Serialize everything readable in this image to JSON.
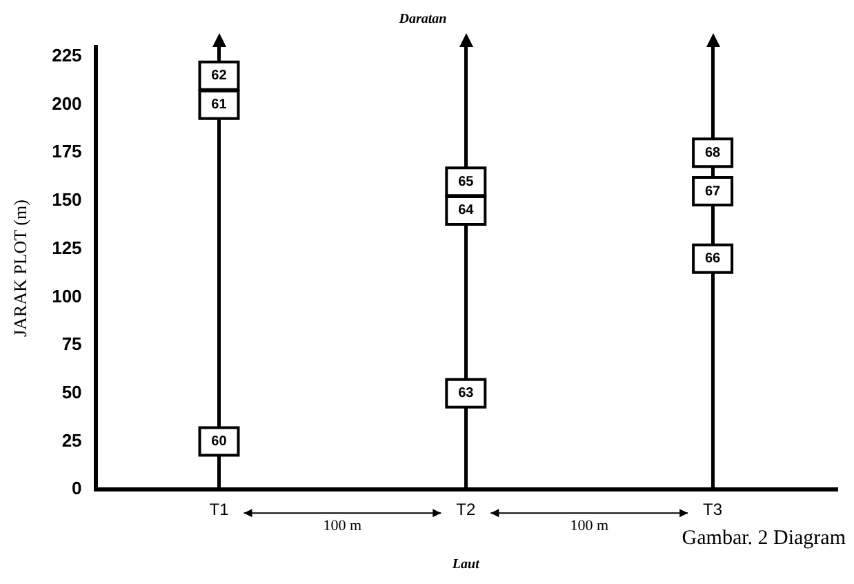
{
  "chart_data": {
    "type": "scatter",
    "title": "Daratan",
    "xlabel": "Laut",
    "ylabel": "JARAK PLOT (m)",
    "categories": [
      "T1",
      "T2",
      "T3"
    ],
    "series": [
      {
        "color": "#000000",
        "x": [
          "T1",
          "T1",
          "T1",
          "T2",
          "T2",
          "T2",
          "T3",
          "T3",
          "T3"
        ],
        "values": [
          25,
          200,
          215,
          50,
          145,
          160,
          120,
          155,
          175
        ]
      }
    ],
    "ylim": [
      0,
      230
    ],
    "yticks": [
      0,
      25,
      50,
      75,
      100,
      125,
      150,
      175,
      200,
      225
    ],
    "grid": "x",
    "legend": false,
    "marker": "square",
    "annotations": [
      {
        "text": "60",
        "x": "T1",
        "y": 25
      },
      {
        "text": "61",
        "x": "T1",
        "y": 200
      },
      {
        "text": "62",
        "x": "T1",
        "y": 215
      },
      {
        "text": "63",
        "x": "T2",
        "y": 50
      },
      {
        "text": "64",
        "x": "T2",
        "y": 145
      },
      {
        "text": "65",
        "x": "T2",
        "y": 160
      },
      {
        "text": "66",
        "x": "T3",
        "y": 120
      },
      {
        "text": "67",
        "x": "T3",
        "y": 155
      },
      {
        "text": "68",
        "x": "T3",
        "y": 175
      },
      "100 m",
      "100 m",
      "Gambar. 2 Diagram"
    ]
  }
}
